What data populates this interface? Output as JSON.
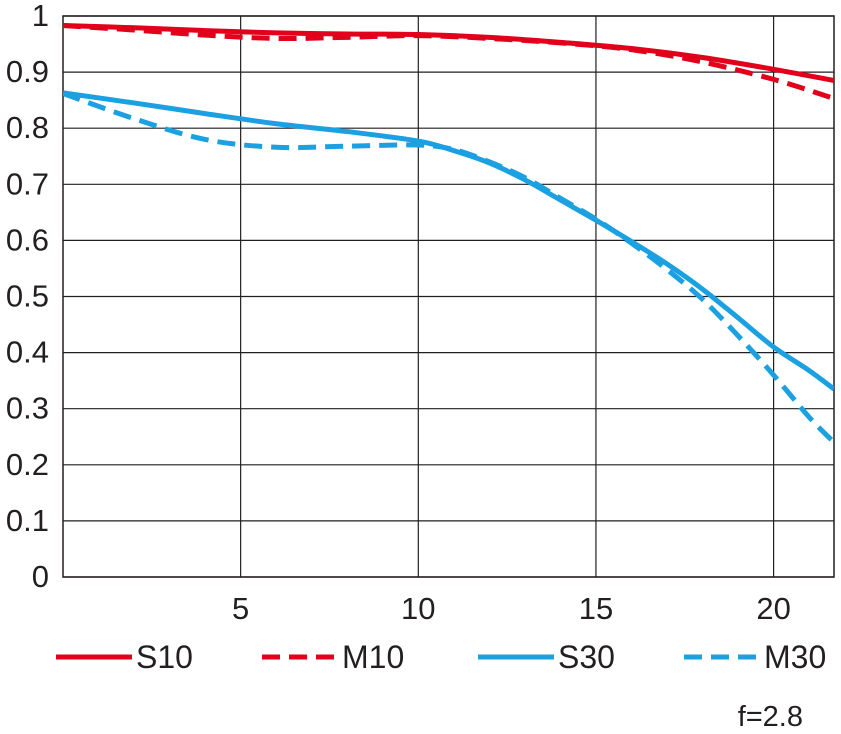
{
  "chart_data": {
    "type": "line",
    "title": "",
    "xlabel": "",
    "ylabel": "",
    "xlim": [
      0,
      21.7
    ],
    "ylim": [
      0,
      1
    ],
    "grid": true,
    "legend_position": "bottom",
    "annotation": "f=2.8",
    "x_ticks": [
      5,
      10,
      15,
      20
    ],
    "x_tick_labels": [
      "5",
      "10",
      "15",
      "20"
    ],
    "y_ticks": [
      0,
      0.1,
      0.2,
      0.3,
      0.4,
      0.5,
      0.6,
      0.7,
      0.8,
      0.9,
      1
    ],
    "y_tick_labels": [
      "0",
      "0.1",
      "0.2",
      "0.3",
      "0.4",
      "0.5",
      "0.6",
      "0.7",
      "0.8",
      "0.9",
      "1"
    ],
    "series": [
      {
        "name": "S10",
        "color": "#e2001a",
        "dashed": false,
        "x": [
          0,
          2,
          4,
          6,
          8,
          10,
          12,
          14,
          16,
          18,
          20,
          21.7
        ],
        "y": [
          0.983,
          0.979,
          0.974,
          0.97,
          0.968,
          0.967,
          0.962,
          0.953,
          0.942,
          0.926,
          0.905,
          0.885
        ]
      },
      {
        "name": "M10",
        "color": "#e2001a",
        "dashed": true,
        "x": [
          0,
          2,
          4,
          6,
          8,
          10,
          12,
          14,
          16,
          18,
          20,
          21.7
        ],
        "y": [
          0.983,
          0.975,
          0.966,
          0.96,
          0.962,
          0.965,
          0.96,
          0.952,
          0.94,
          0.918,
          0.887,
          0.853
        ]
      },
      {
        "name": "S30",
        "color": "#1ba0e2",
        "dashed": false,
        "x": [
          0,
          2,
          4,
          6,
          8,
          10,
          11,
          12,
          13,
          14,
          15,
          16,
          17,
          18,
          19,
          20,
          21,
          21.7
        ],
        "y": [
          0.863,
          0.845,
          0.826,
          0.808,
          0.794,
          0.777,
          0.76,
          0.738,
          0.708,
          0.672,
          0.636,
          0.598,
          0.558,
          0.513,
          0.462,
          0.41,
          0.368,
          0.335
        ]
      },
      {
        "name": "M30",
        "color": "#1ba0e2",
        "dashed": true,
        "x": [
          0,
          2,
          4,
          6,
          8,
          10,
          11,
          12,
          13,
          14,
          15,
          16,
          17,
          18,
          19,
          20,
          21,
          21.7
        ],
        "y": [
          0.862,
          0.817,
          0.78,
          0.766,
          0.768,
          0.77,
          0.762,
          0.74,
          0.712,
          0.675,
          0.638,
          0.595,
          0.548,
          0.495,
          0.43,
          0.36,
          0.285,
          0.24
        ]
      }
    ]
  }
}
